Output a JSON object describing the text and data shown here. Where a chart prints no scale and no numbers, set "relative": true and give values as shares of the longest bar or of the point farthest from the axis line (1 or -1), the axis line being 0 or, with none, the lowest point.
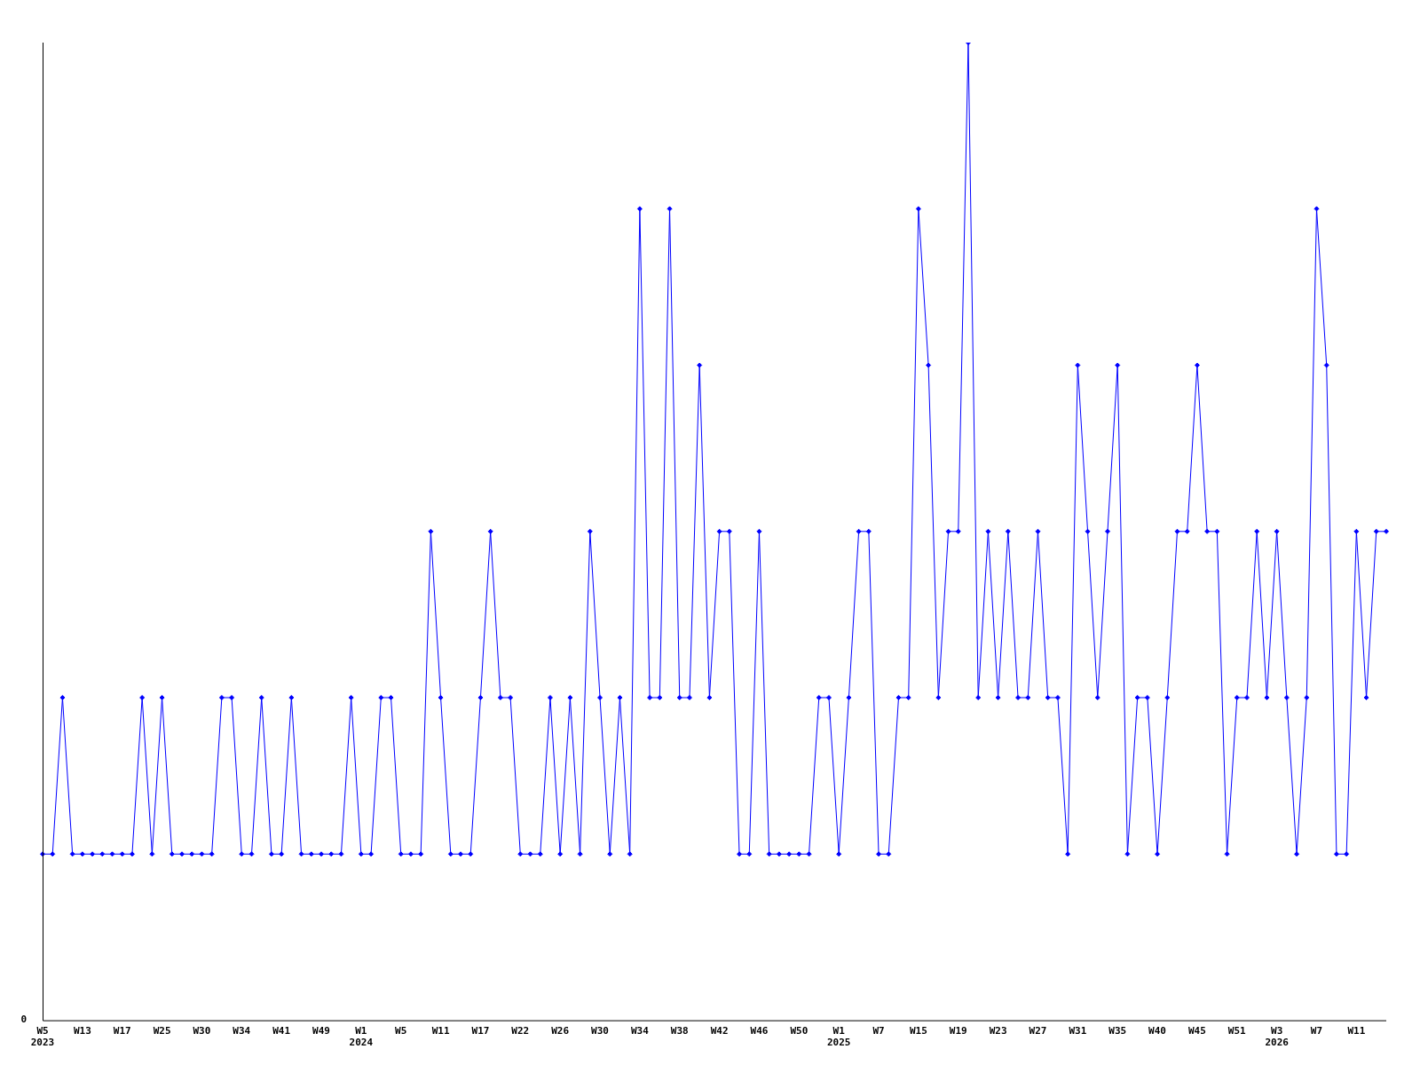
{
  "chart_data": {
    "type": "line",
    "relative": true,
    "color": "#0000ff",
    "marker": "diamond",
    "line_style": "solid",
    "grid": false,
    "legend": false,
    "categories": [
      "W5\n2023",
      null,
      null,
      null,
      "W13",
      null,
      null,
      null,
      "W17",
      null,
      null,
      null,
      "W25",
      null,
      null,
      null,
      "W30",
      null,
      null,
      null,
      "W34",
      null,
      null,
      null,
      "W41",
      null,
      null,
      null,
      "W49",
      null,
      null,
      null,
      "W1\n2024",
      null,
      null,
      null,
      "W5",
      null,
      null,
      null,
      "W11",
      null,
      null,
      null,
      "W17",
      null,
      null,
      null,
      "W22",
      null,
      null,
      null,
      "W26",
      null,
      null,
      null,
      "W30",
      null,
      null,
      null,
      "W34",
      null,
      null,
      null,
      "W38",
      null,
      null,
      null,
      "W42",
      null,
      null,
      null,
      "W46",
      null,
      null,
      null,
      "W50",
      null,
      null,
      null,
      "W1\n2025",
      null,
      null,
      null,
      "W7",
      null,
      null,
      null,
      "W15",
      null,
      null,
      null,
      "W19",
      null,
      null,
      null,
      "W23",
      null,
      null,
      null,
      "W27",
      null,
      null,
      null,
      "W31",
      null,
      null,
      null,
      "W35",
      null,
      null,
      null,
      "W40",
      null,
      null,
      null,
      "W45",
      null,
      null,
      null,
      "W51",
      null,
      null,
      null,
      "W3\n2026",
      null,
      null,
      null,
      "W7",
      null,
      null,
      null,
      "W11",
      null,
      null,
      null
    ],
    "values": [
      0.17,
      0.17,
      0.33,
      0.17,
      0.17,
      0.17,
      0.17,
      0.17,
      0.17,
      0.17,
      0.33,
      0.17,
      0.33,
      0.17,
      0.17,
      0.17,
      0.17,
      0.17,
      0.33,
      0.33,
      0.17,
      0.17,
      0.33,
      0.17,
      0.17,
      0.33,
      0.17,
      0.17,
      0.17,
      0.17,
      0.17,
      0.33,
      0.17,
      0.17,
      0.33,
      0.33,
      0.17,
      0.17,
      0.17,
      0.5,
      0.33,
      0.17,
      0.17,
      0.17,
      0.33,
      0.5,
      0.33,
      0.33,
      0.17,
      0.17,
      0.17,
      0.33,
      0.17,
      0.33,
      0.17,
      0.5,
      0.33,
      0.17,
      0.33,
      0.17,
      0.83,
      0.33,
      0.33,
      0.83,
      0.33,
      0.33,
      0.67,
      0.33,
      0.5,
      0.5,
      0.17,
      0.17,
      0.5,
      0.17,
      0.17,
      0.17,
      0.17,
      0.17,
      0.33,
      0.33,
      0.17,
      0.33,
      0.5,
      0.5,
      0.17,
      0.17,
      0.33,
      0.33,
      0.83,
      0.67,
      0.33,
      0.5,
      0.5,
      1,
      0.33,
      0.5,
      0.33,
      0.5,
      0.33,
      0.33,
      0.5,
      0.33,
      0.33,
      0.17,
      0.67,
      0.5,
      0.33,
      0.5,
      0.67,
      0.17,
      0.33,
      0.33,
      0.17,
      0.33,
      0.5,
      0.5,
      0.67,
      0.5,
      0.5,
      0.17,
      0.33,
      0.33,
      0.5,
      0.33,
      0.5,
      0.33,
      0.17,
      0.33,
      0.83,
      0.67,
      0.17,
      0.17,
      0.5,
      0.33,
      0.5,
      0.5
    ],
    "annotations": [
      "0"
    ]
  }
}
